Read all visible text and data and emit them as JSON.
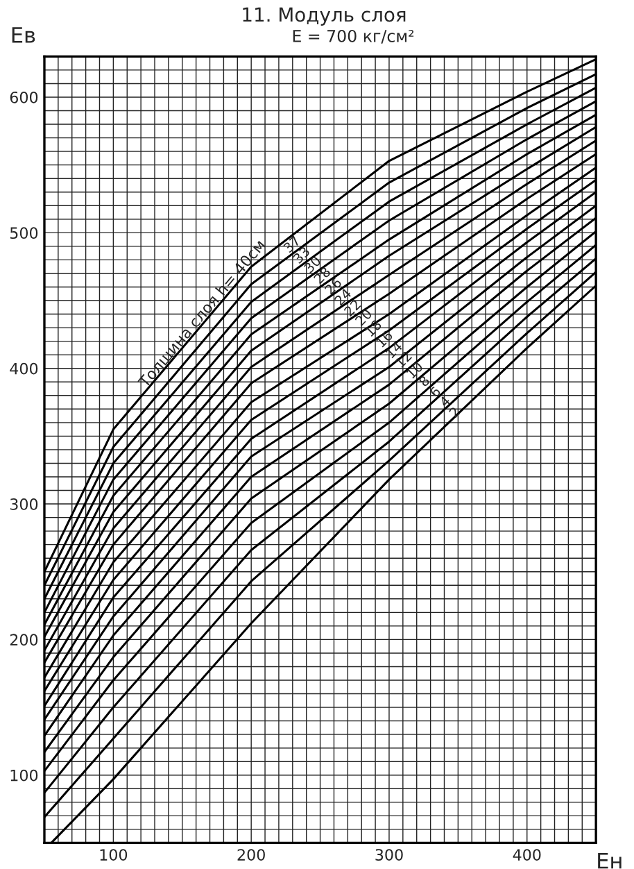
{
  "chart_data": {
    "type": "line",
    "title": "11. Модуль слоя",
    "subtitle": "E = 700 кг/см²",
    "xlabel": "Eн",
    "ylabel": "Eв",
    "xlim": [
      50,
      450
    ],
    "ylim": [
      50,
      630
    ],
    "xticks": [
      {
        "value": 60,
        "label": null
      },
      {
        "value": 70,
        "label": null
      },
      {
        "value": 80,
        "label": null
      },
      {
        "value": 90,
        "label": null
      },
      100,
      {
        "value": 110,
        "label": null
      },
      {
        "value": 120,
        "label": null
      },
      {
        "value": 130,
        "label": null
      },
      {
        "value": 140,
        "label": null
      },
      {
        "value": 150,
        "label": null
      },
      {
        "value": 160,
        "label": null
      },
      {
        "value": 170,
        "label": null
      },
      {
        "value": 180,
        "label": null
      },
      {
        "value": 190,
        "label": null
      },
      200,
      {
        "value": 210,
        "label": null
      },
      {
        "value": 220,
        "label": null
      },
      {
        "value": 230,
        "label": null
      },
      {
        "value": 240,
        "label": null
      },
      {
        "value": 250,
        "label": null
      },
      {
        "value": 260,
        "label": null
      },
      {
        "value": 270,
        "label": null
      },
      {
        "value": 280,
        "label": null
      },
      {
        "value": 290,
        "label": null
      },
      300,
      {
        "value": 310,
        "label": null
      },
      {
        "value": 320,
        "label": null
      },
      {
        "value": 330,
        "label": null
      },
      {
        "value": 340,
        "label": null
      },
      {
        "value": 350,
        "label": null
      },
      {
        "value": 360,
        "label": null
      },
      {
        "value": 370,
        "label": null
      },
      {
        "value": 380,
        "label": null
      },
      {
        "value": 390,
        "label": null
      },
      400,
      {
        "value": 410,
        "label": null
      },
      {
        "value": 420,
        "label": null
      },
      {
        "value": 430,
        "label": null
      },
      {
        "value": 440,
        "label": null
      }
    ],
    "yticks": [
      {
        "value": 60,
        "label": null
      },
      {
        "value": 70,
        "label": null
      },
      {
        "value": 80,
        "label": null
      },
      {
        "value": 90,
        "label": null
      },
      100,
      {
        "value": 110,
        "label": null
      },
      {
        "value": 120,
        "label": null
      },
      {
        "value": 130,
        "label": null
      },
      {
        "value": 140,
        "label": null
      },
      {
        "value": 150,
        "label": null
      },
      {
        "value": 160,
        "label": null
      },
      {
        "value": 170,
        "label": null
      },
      {
        "value": 180,
        "label": null
      },
      {
        "value": 190,
        "label": null
      },
      200,
      {
        "value": 210,
        "label": null
      },
      {
        "value": 220,
        "label": null
      },
      {
        "value": 230,
        "label": null
      },
      {
        "value": 240,
        "label": null
      },
      {
        "value": 250,
        "label": null
      },
      {
        "value": 260,
        "label": null
      },
      {
        "value": 270,
        "label": null
      },
      {
        "value": 280,
        "label": null
      },
      {
        "value": 290,
        "label": null
      },
      300,
      {
        "value": 310,
        "label": null
      },
      {
        "value": 320,
        "label": null
      },
      {
        "value": 330,
        "label": null
      },
      {
        "value": 340,
        "label": null
      },
      {
        "value": 350,
        "label": null
      },
      {
        "value": 360,
        "label": null
      },
      {
        "value": 370,
        "label": null
      },
      {
        "value": 380,
        "label": null
      },
      {
        "value": 390,
        "label": null
      },
      400,
      {
        "value": 410,
        "label": null
      },
      {
        "value": 420,
        "label": null
      },
      {
        "value": 430,
        "label": null
      },
      {
        "value": 440,
        "label": null
      },
      {
        "value": 450,
        "label": null
      },
      {
        "value": 460,
        "label": null
      },
      {
        "value": 470,
        "label": null
      },
      {
        "value": 480,
        "label": null
      },
      {
        "value": 490,
        "label": null
      },
      500,
      {
        "value": 510,
        "label": null
      },
      {
        "value": 520,
        "label": null
      },
      {
        "value": 530,
        "label": null
      },
      {
        "value": 540,
        "label": null
      },
      {
        "value": 550,
        "label": null
      },
      {
        "value": 560,
        "label": null
      },
      {
        "value": 570,
        "label": null
      },
      {
        "value": 580,
        "label": null
      },
      {
        "value": 590,
        "label": null
      },
      600,
      {
        "value": 610,
        "label": null
      },
      {
        "value": 620,
        "label": null
      }
    ],
    "grid": true,
    "line_style": "solid",
    "x": [
      50,
      100,
      200,
      300,
      400,
      450
    ],
    "series": [
      {
        "color": "#000000",
        "values": [
          250,
          355,
          475,
          553,
          604,
          628
        ]
      },
      {
        "color": "#000000",
        "values": [
          240,
          342,
          462,
          537,
          592,
          617
        ]
      },
      {
        "color": "#000000",
        "values": [
          230,
          330,
          449,
          523,
          580,
          607
        ]
      },
      {
        "color": "#000000",
        "values": [
          220,
          318,
          437,
          509,
          569,
          597
        ]
      },
      {
        "color": "#000000",
        "values": [
          211,
          306,
          425,
          495,
          558,
          587
        ]
      },
      {
        "color": "#000000",
        "values": [
          202,
          294,
          413,
          483,
          547,
          578
        ]
      },
      {
        "color": "#000000",
        "values": [
          192,
          282,
          401,
          469,
          536,
          568
        ]
      },
      {
        "color": "#000000",
        "values": [
          183,
          270,
          389,
          455,
          525,
          558
        ]
      },
      {
        "color": "#000000",
        "values": [
          172,
          257,
          375,
          440,
          513,
          548
        ]
      },
      {
        "color": "#000000",
        "values": [
          162,
          244,
          362,
          428,
          503,
          539
        ]
      },
      {
        "color": "#000000",
        "values": [
          151,
          231,
          348,
          415,
          493,
          530
        ]
      },
      {
        "color": "#000000",
        "values": [
          141,
          217,
          335,
          401,
          482,
          520
        ]
      },
      {
        "color": "#000000",
        "values": [
          129,
          203,
          320,
          388,
          472,
          511
        ]
      },
      {
        "color": "#000000",
        "values": [
          117,
          187,
          304,
          374,
          460,
          501
        ]
      },
      {
        "color": "#000000",
        "values": [
          103,
          170,
          286,
          360,
          449,
          491
        ]
      },
      {
        "color": "#000000",
        "values": [
          87,
          150,
          266,
          346,
          438,
          481
        ]
      },
      {
        "color": "#000000",
        "values": [
          69,
          127,
          243,
          332,
          426,
          471
        ]
      },
      {
        "color": "#000000",
        "x": [
          55,
          100,
          200,
          300,
          400,
          450
        ],
        "values": [
          50,
          97,
          212,
          318,
          415,
          461
        ]
      }
    ],
    "annotations": [
      {
        "text": "Толщина слоя h= 40см",
        "x": 165,
        "y": 440
      },
      {
        "text": "37",
        "x": 230,
        "y": 491
      },
      {
        "text": "33",
        "x": 237,
        "y": 483
      },
      {
        "text": "30",
        "x": 245,
        "y": 476
      },
      {
        "text": "28",
        "x": 252,
        "y": 468
      },
      {
        "text": "26",
        "x": 260,
        "y": 460
      },
      {
        "text": "24",
        "x": 267,
        "y": 452
      },
      {
        "text": "22",
        "x": 274,
        "y": 444
      },
      {
        "text": "20",
        "x": 282,
        "y": 437
      },
      {
        "text": "18",
        "x": 289,
        "y": 429
      },
      {
        "text": "16",
        "x": 297,
        "y": 421
      },
      {
        "text": "14",
        "x": 304,
        "y": 413
      },
      {
        "text": "12",
        "x": 311,
        "y": 406
      },
      {
        "text": "10",
        "x": 319,
        "y": 398
      },
      {
        "text": "8",
        "x": 326,
        "y": 390
      },
      {
        "text": "6",
        "x": 334,
        "y": 382
      },
      {
        "text": "4",
        "x": 341,
        "y": 375
      },
      {
        "text": "2",
        "x": 348,
        "y": 367
      }
    ]
  }
}
